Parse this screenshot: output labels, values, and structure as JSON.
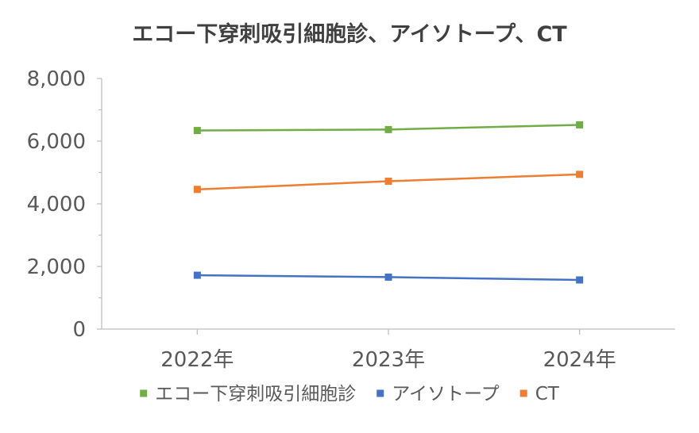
{
  "chart_data": {
    "type": "line",
    "title": "エコー下穿刺吸引細胞診、アイソトープ、CT",
    "xlabel": "",
    "ylabel": "",
    "categories": [
      "2022年",
      "2023年",
      "2024年"
    ],
    "ylim": [
      0,
      8000
    ],
    "yticks": [
      0,
      2000,
      4000,
      6000,
      8000
    ],
    "ytick_labels": [
      "0",
      "2,000",
      "4,000",
      "6,000",
      "8,000"
    ],
    "grid": false,
    "legend_position": "bottom",
    "series": [
      {
        "name": "エコー下穿刺吸引細胞診",
        "values": [
          6340,
          6370,
          6520
        ],
        "color": "#70AD47"
      },
      {
        "name": "アイソトープ",
        "values": [
          1720,
          1660,
          1570
        ],
        "color": "#4472C4"
      },
      {
        "name": "CT",
        "values": [
          4460,
          4720,
          4940
        ],
        "color": "#ED7D31"
      }
    ]
  }
}
